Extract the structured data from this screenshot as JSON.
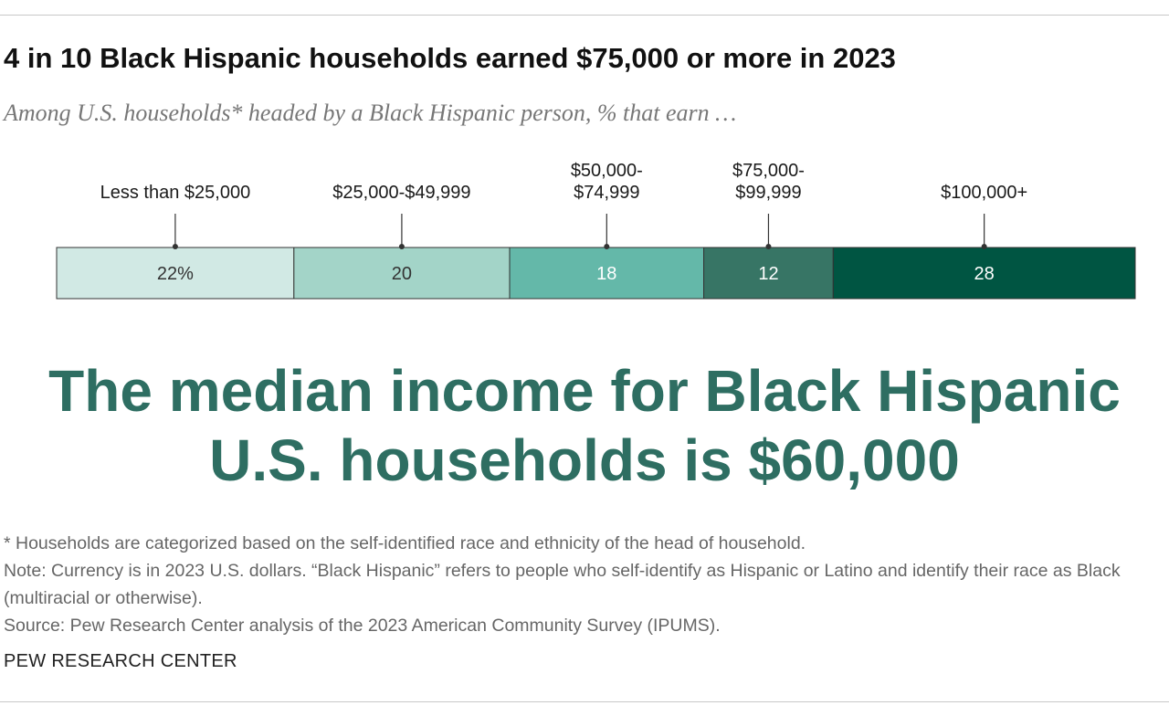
{
  "title": "4 in 10 Black Hispanic households earned $75,000 or more in 2023",
  "subtitle": "Among U.S. households* headed by a Black Hispanic person, % that earn …",
  "chart_data": {
    "type": "bar",
    "orientation": "horizontal-stacked",
    "categories": [
      "Less than $25,000",
      "$25,000-$49,999",
      "$50,000-\n$74,999",
      "$75,000-\n$99,999",
      "$100,000+"
    ],
    "values": [
      22,
      20,
      18,
      12,
      28
    ],
    "value_labels": [
      "22%",
      "20",
      "18",
      "12",
      "28"
    ],
    "colors": [
      "#d1e9e4",
      "#a3d4c8",
      "#64b8a9",
      "#377565",
      "#005542"
    ],
    "label_colors": [
      "#333333",
      "#333333",
      "#ffffff",
      "#ffffff",
      "#ffffff"
    ],
    "title": "4 in 10 Black Hispanic households earned $75,000 or more in 2023",
    "xlabel": "",
    "ylabel": "",
    "xlim": [
      0,
      100
    ],
    "legend": "none",
    "grid": false
  },
  "headline": "The median income for Black Hispanic U.S. households is $60,000",
  "notes": {
    "footnote": "* Households are categorized based on the self-identified race and ethnicity of the head of household.",
    "note": "Note: Currency is in 2023 U.S. dollars. “Black Hispanic” refers to people who self-identify as Hispanic or Latino and identify their race as Black (multiracial or otherwise).",
    "source": "Source: Pew Research Center analysis of the 2023 American Community Survey (IPUMS)."
  },
  "brand": "PEW RESEARCH CENTER"
}
